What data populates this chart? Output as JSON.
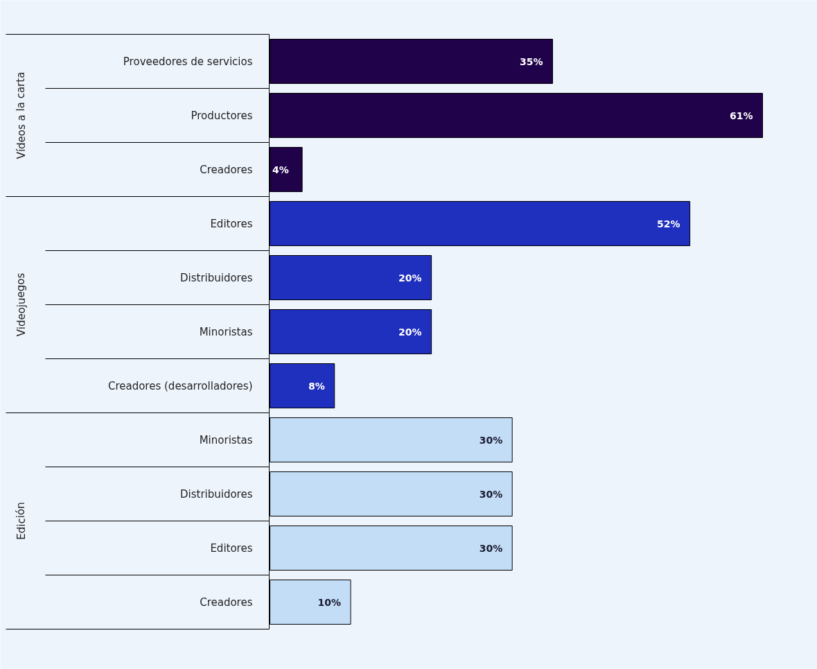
{
  "chart_data": {
    "type": "bar",
    "orientation": "horizontal",
    "categories": [
      "Proveedores de servicios",
      "Productores",
      "Creadores",
      "Editores",
      "Distribuidores",
      "Minoristas",
      "Creadores (desarrolladores)",
      "Minoristas",
      "Distribuidores",
      "Editores",
      "Creadores"
    ],
    "values": [
      35,
      61,
      4,
      52,
      20,
      20,
      8,
      30,
      30,
      30,
      10
    ],
    "value_labels": [
      "35%",
      "61%",
      "4%",
      "52%",
      "20%",
      "20%",
      "8%",
      "30%",
      "30%",
      "30%",
      "10%"
    ],
    "colors": [
      "#20024a",
      "#20024a",
      "#20024a",
      "#1f2fbe",
      "#1f2fbe",
      "#1f2fbe",
      "#1f2fbe",
      "#c3ddf7",
      "#c3ddf7",
      "#c3ddf7",
      "#c3ddf7"
    ],
    "annotations": [
      "Vídeos a la carta",
      "Videojuegos",
      "Edición"
    ],
    "grid": false
  }
}
